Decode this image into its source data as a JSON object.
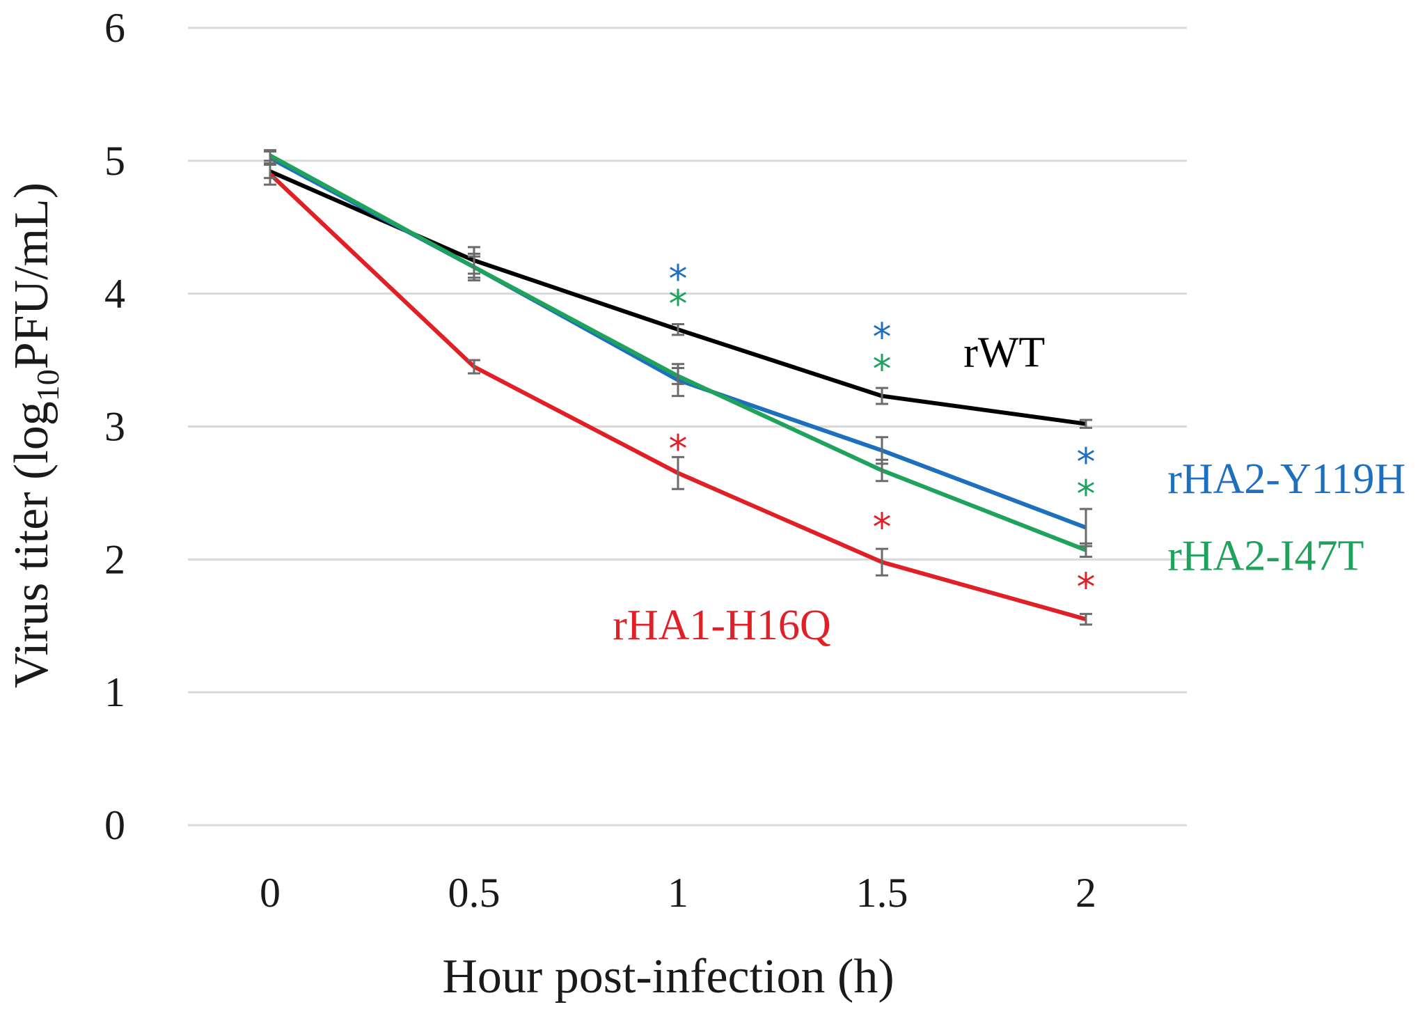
{
  "chart_data": {
    "type": "line",
    "title": "",
    "xlabel": "Hour post-infection (h)",
    "ylabel_parts": {
      "prefix": "Virus titer (log",
      "subscript": "10",
      "suffix": "PFU/mL)"
    },
    "x": [
      "0",
      "0.5",
      "1",
      "1.5",
      "2"
    ],
    "x_values": [
      0,
      0.5,
      1,
      1.5,
      2
    ],
    "y_ticks": [
      "0",
      "1",
      "2",
      "3",
      "4",
      "5",
      "6"
    ],
    "ylim": [
      0,
      6
    ],
    "grid": true,
    "series": [
      {
        "name": "rWT",
        "color": "#000000",
        "values": [
          4.92,
          4.25,
          3.73,
          3.23,
          3.02
        ],
        "errors": [
          0.05,
          0.1,
          0.04,
          0.06,
          0.03
        ]
      },
      {
        "name": "rHA2-Y119H",
        "color": "#1f6fbf",
        "values": [
          5.02,
          4.2,
          3.35,
          2.82,
          2.24
        ],
        "errors": [
          0.05,
          0.1,
          0.12,
          0.1,
          0.14
        ]
      },
      {
        "name": "rHA2-I47T",
        "color": "#1fa35c",
        "values": [
          5.04,
          4.2,
          3.38,
          2.67,
          2.07
        ],
        "errors": [
          0.04,
          0.08,
          0.06,
          0.08,
          0.05
        ]
      },
      {
        "name": "rHA1-H16Q",
        "color": "#e01f26",
        "values": [
          4.9,
          3.45,
          2.65,
          1.98,
          1.55
        ],
        "errors": [
          0.08,
          0.05,
          0.12,
          0.1,
          0.04
        ]
      }
    ],
    "significance": [
      {
        "x": 1,
        "y": 4.12,
        "text": "*",
        "color": "#1f6fbf"
      },
      {
        "x": 1,
        "y": 3.93,
        "text": "*",
        "color": "#1fa35c"
      },
      {
        "x": 1,
        "y": 2.84,
        "text": "*",
        "color": "#e01f26"
      },
      {
        "x": 1.5,
        "y": 3.68,
        "text": "*",
        "color": "#1f6fbf"
      },
      {
        "x": 1.5,
        "y": 3.44,
        "text": "*",
        "color": "#1fa35c"
      },
      {
        "x": 1.5,
        "y": 2.25,
        "text": "*",
        "color": "#e01f26"
      },
      {
        "x": 2,
        "y": 2.74,
        "text": "*",
        "color": "#1f6fbf"
      },
      {
        "x": 2,
        "y": 2.5,
        "text": "*",
        "color": "#1fa35c"
      },
      {
        "x": 2,
        "y": 1.8,
        "text": "*",
        "color": "#e01f26"
      }
    ],
    "series_labels": [
      {
        "text": "rWT",
        "color": "#000000",
        "x": 1.7,
        "y": 3.45
      },
      {
        "text": "rHA2-Y119H",
        "color": "#1f6fbf",
        "x": 2.2,
        "y": 2.5
      },
      {
        "text": "rHA2-I47T",
        "color": "#1fa35c",
        "x": 2.2,
        "y": 1.92
      },
      {
        "text": "rHA1-H16Q",
        "color": "#e01f26",
        "x": 0.84,
        "y": 1.4
      }
    ]
  }
}
